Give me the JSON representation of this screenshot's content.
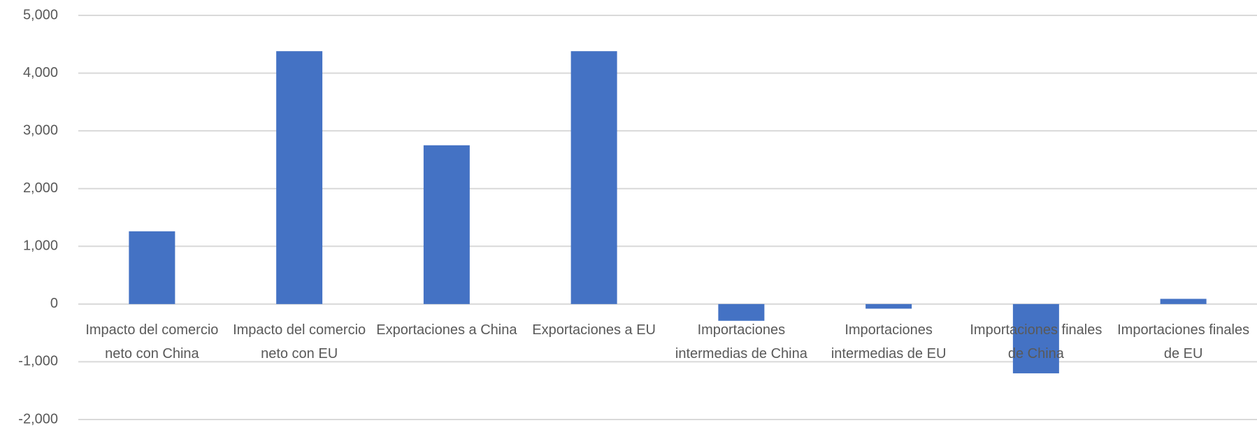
{
  "chart_data": {
    "type": "bar",
    "categories": [
      "Impacto del comercio neto con China",
      "Impacto del comercio neto con EU",
      "Exportaciones a China",
      "Exportaciones a EU",
      "Importaciones intermedias de China",
      "Importaciones intermedias de EU",
      "Importaciones finales de China",
      "Importaciones finales de EU"
    ],
    "values": [
      1260,
      4380,
      2750,
      4380,
      -290,
      -80,
      -1200,
      90
    ],
    "color": "#4472c4",
    "ylim": [
      -2000,
      5000
    ],
    "yticks": [
      {
        "value": -2000,
        "label": "-2,000"
      },
      {
        "value": -1000,
        "label": "-1,000"
      },
      0,
      {
        "value": 1000,
        "label": "1,000"
      },
      {
        "value": 2000,
        "label": "2,000"
      },
      {
        "value": 3000,
        "label": "3,000"
      },
      {
        "value": 4000,
        "label": "4,000"
      },
      {
        "value": 5000,
        "label": "5,000"
      }
    ],
    "grid": true
  }
}
